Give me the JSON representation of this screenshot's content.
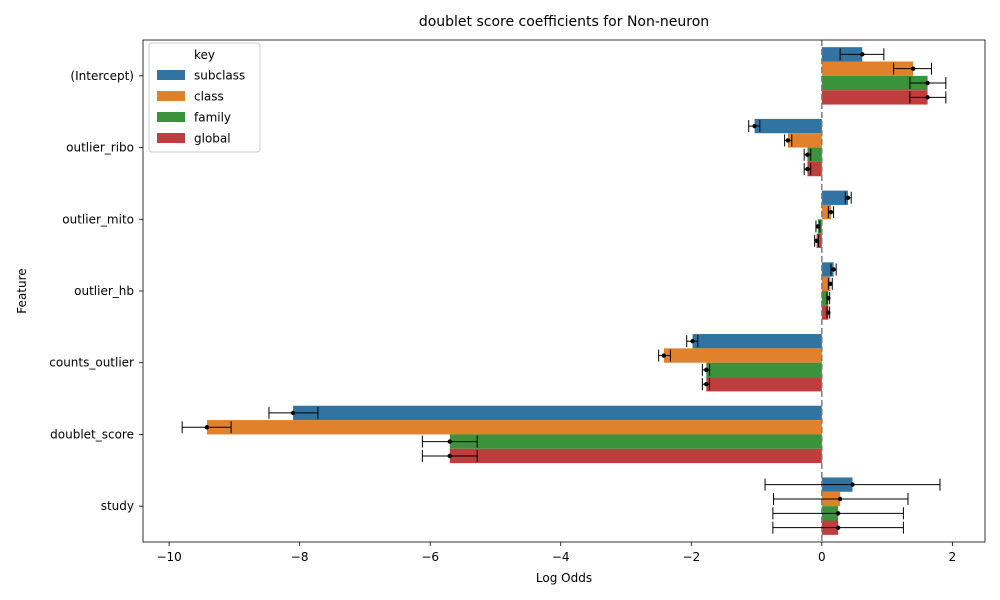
{
  "chart_data": {
    "type": "bar",
    "orientation": "horizontal",
    "title": "doublet score coefficients for Non-neuron",
    "xlabel": "Log Odds",
    "ylabel": "Feature",
    "xlim": [
      -10.4,
      2.5
    ],
    "xticks": [
      -10,
      -8,
      -6,
      -4,
      -2,
      0,
      2
    ],
    "xtick_labels": [
      "−10",
      "−8",
      "−6",
      "−4",
      "−2",
      "0",
      "2"
    ],
    "reference_line": 0,
    "grid": false,
    "legend": {
      "title": "key",
      "placement": "top-left"
    },
    "categories": [
      "(Intercept)",
      "outlier_ribo",
      "outlier_mito",
      "outlier_hb",
      "counts_outlier",
      "doublet_score",
      "study"
    ],
    "series": [
      {
        "name": "subclass",
        "color": "#3274a1",
        "values": [
          0.62,
          -1.03,
          0.4,
          0.18,
          -1.98,
          -8.1,
          0.47
        ],
        "err_low": [
          0.28,
          -1.12,
          0.36,
          0.14,
          -2.07,
          -8.47,
          -0.87
        ],
        "err_high": [
          0.95,
          -0.95,
          0.45,
          0.22,
          -1.9,
          -7.72,
          1.81
        ]
      },
      {
        "name": "class",
        "color": "#e1812c",
        "values": [
          1.4,
          -0.52,
          0.14,
          0.13,
          -2.42,
          -9.42,
          0.28
        ],
        "err_low": [
          1.1,
          -0.57,
          0.1,
          0.1,
          -2.5,
          -9.8,
          -0.74
        ],
        "err_high": [
          1.68,
          -0.46,
          0.18,
          0.16,
          -2.32,
          -9.05,
          1.32
        ]
      },
      {
        "name": "family",
        "color": "#3a923a",
        "values": [
          1.62,
          -0.22,
          -0.06,
          0.1,
          -1.77,
          -5.7,
          0.25
        ],
        "err_low": [
          1.35,
          -0.27,
          -0.09,
          0.08,
          -1.83,
          -6.12,
          -0.75
        ],
        "err_high": [
          1.9,
          -0.17,
          -0.03,
          0.12,
          -1.72,
          -5.28,
          1.25
        ]
      },
      {
        "name": "global",
        "color": "#c03d3e",
        "values": [
          1.62,
          -0.22,
          -0.08,
          0.1,
          -1.77,
          -5.7,
          0.25
        ],
        "err_low": [
          1.35,
          -0.27,
          -0.11,
          0.08,
          -1.83,
          -6.12,
          -0.75
        ],
        "err_high": [
          1.9,
          -0.17,
          -0.05,
          0.12,
          -1.72,
          -5.28,
          1.25
        ]
      }
    ]
  }
}
